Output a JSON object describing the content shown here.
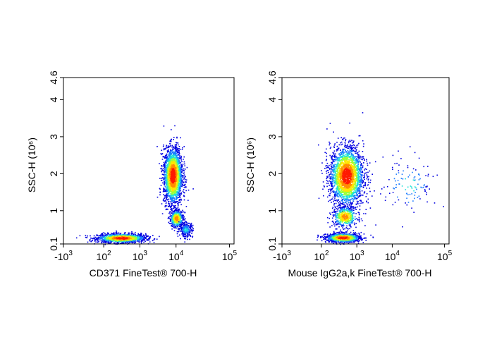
{
  "chart_data": [
    {
      "type": "scatter",
      "subtype": "flow-cytometry-density-dot-plot",
      "xlabel": "CD371 FineTest® 700-H",
      "ylabel": "SSC-H",
      "ylabel_unit": "(10⁶)",
      "x_scale": "biexponential",
      "x_ticks": [
        {
          "base": "-10",
          "exp": "3"
        },
        {
          "base": "10",
          "exp": "2"
        },
        {
          "base": "10",
          "exp": "3"
        },
        {
          "base": "10",
          "exp": "4"
        },
        {
          "base": "10",
          "exp": "5"
        }
      ],
      "y_ticks": [
        "0.1",
        "1",
        "2",
        "3",
        "4",
        "4.6"
      ],
      "ylim": [
        0.1,
        4.6
      ],
      "populations": [
        {
          "x": 300,
          "y": 0.27,
          "spread_x": 0.28,
          "spread_y": 0.06,
          "count": 1500
        },
        {
          "x": 8000,
          "y": 1.95,
          "spread_x": 0.11,
          "spread_y": 0.38,
          "count": 2200
        },
        {
          "x": 10000,
          "y": 0.8,
          "spread_x": 0.08,
          "spread_y": 0.12,
          "count": 450
        },
        {
          "x": 15000,
          "y": 0.5,
          "spread_x": 0.08,
          "spread_y": 0.1,
          "count": 250
        }
      ]
    },
    {
      "type": "scatter",
      "subtype": "flow-cytometry-density-dot-plot",
      "xlabel": "Mouse IgG2a,k FineTest® 700-H",
      "ylabel": "SSC-H",
      "ylabel_unit": "(10⁶)",
      "x_scale": "biexponential",
      "x_ticks": [
        {
          "base": "-10",
          "exp": "3"
        },
        {
          "base": "10",
          "exp": "2"
        },
        {
          "base": "10",
          "exp": "3"
        },
        {
          "base": "10",
          "exp": "4"
        },
        {
          "base": "10",
          "exp": "5"
        }
      ],
      "y_ticks": [
        "0.1",
        "1",
        "2",
        "3",
        "4",
        "4.6"
      ],
      "ylim": [
        0.1,
        4.6
      ],
      "populations": [
        {
          "x": 400,
          "y": 0.28,
          "spread_x": 0.2,
          "spread_y": 0.06,
          "count": 1200
        },
        {
          "x": 500,
          "y": 1.95,
          "spread_x": 0.2,
          "spread_y": 0.4,
          "count": 2400
        },
        {
          "x": 450,
          "y": 0.85,
          "spread_x": 0.15,
          "spread_y": 0.14,
          "count": 500
        },
        {
          "x": 20000,
          "y": 1.7,
          "spread_x": 0.35,
          "spread_y": 0.4,
          "count": 120
        }
      ]
    }
  ]
}
